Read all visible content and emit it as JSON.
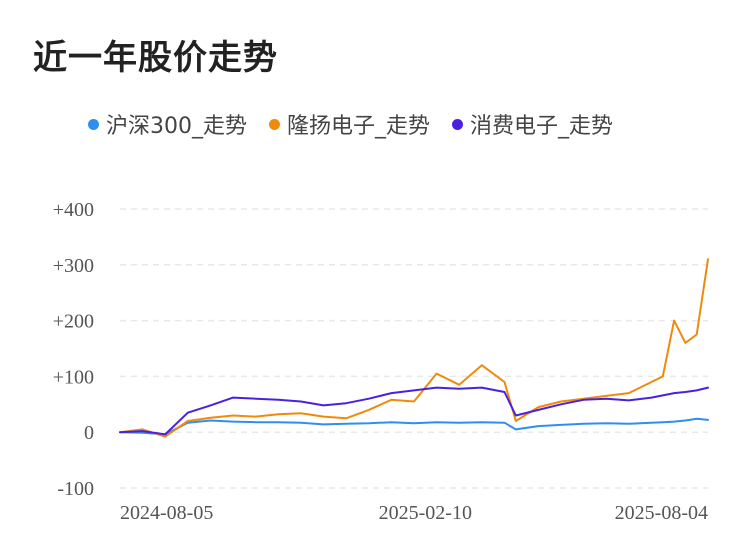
{
  "title": "近一年股价走势",
  "colors": {
    "hs300": "#2f8ff0",
    "longyang": "#f08a0b",
    "consumer": "#4a21e0",
    "grid": "#e8e8e8",
    "tick_text": "#555555"
  },
  "chart_data": {
    "type": "line",
    "title": "近一年股价走势",
    "xlabel": "",
    "ylabel": "",
    "ylim": [
      -100,
      400
    ],
    "y_ticks": [
      "+400",
      "+300",
      "+200",
      "+100",
      "0",
      "-100"
    ],
    "y_tick_values": [
      400,
      300,
      200,
      100,
      0,
      -100
    ],
    "x_ticks": [
      "2024-08-05",
      "2025-02-10",
      "2025-08-04"
    ],
    "grid": true,
    "legend_position": "top",
    "x": [
      "2024-08-05",
      "2024-08-19",
      "2024-09-02",
      "2024-09-16",
      "2024-09-30",
      "2024-10-14",
      "2024-10-28",
      "2024-11-11",
      "2024-11-25",
      "2024-12-09",
      "2024-12-23",
      "2025-01-06",
      "2025-01-20",
      "2025-02-03",
      "2025-02-17",
      "2025-03-03",
      "2025-03-17",
      "2025-03-31",
      "2025-04-07",
      "2025-04-21",
      "2025-05-05",
      "2025-05-19",
      "2025-06-02",
      "2025-06-16",
      "2025-06-30",
      "2025-07-07",
      "2025-07-14",
      "2025-07-21",
      "2025-07-28",
      "2025-08-04"
    ],
    "series": [
      {
        "name": "沪深300_走势",
        "color_key": "hs300",
        "values": [
          0,
          -1,
          -4,
          17,
          21,
          19,
          18,
          18,
          17,
          14,
          15,
          16,
          18,
          16,
          18,
          17,
          18,
          17,
          5,
          11,
          13,
          15,
          16,
          15,
          17,
          18,
          19,
          21,
          24,
          22
        ]
      },
      {
        "name": "隆扬电子_走势",
        "color_key": "longyang",
        "values": [
          0,
          5,
          -8,
          20,
          26,
          30,
          28,
          32,
          34,
          28,
          25,
          40,
          58,
          55,
          105,
          85,
          120,
          90,
          20,
          45,
          55,
          60,
          65,
          70,
          90,
          100,
          200,
          160,
          175,
          310
        ]
      },
      {
        "name": "消费电子_走势",
        "color_key": "consumer",
        "values": [
          0,
          2,
          -4,
          35,
          48,
          62,
          60,
          58,
          55,
          48,
          52,
          60,
          70,
          75,
          80,
          78,
          80,
          72,
          30,
          40,
          50,
          58,
          60,
          57,
          62,
          66,
          70,
          72,
          75,
          80
        ]
      }
    ]
  }
}
